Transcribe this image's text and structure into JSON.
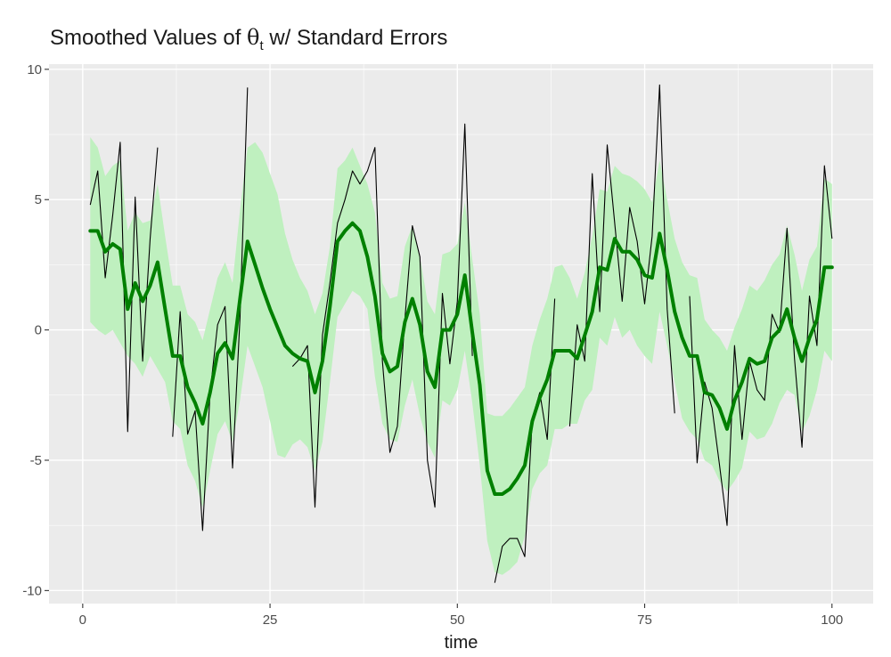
{
  "chart_data": {
    "type": "line",
    "title": {
      "prefix": "Smoothed Values of ",
      "symbol": "θ",
      "subscript": "t",
      "suffix": " w/ Standard Errors"
    },
    "xlabel": "time",
    "ylabel": "",
    "xlim": [
      -4.5,
      105.5
    ],
    "ylim": [
      -10.5,
      10.2
    ],
    "x_ticks": [
      0,
      25,
      50,
      75,
      100
    ],
    "y_ticks": [
      10,
      5,
      0,
      -5,
      -10
    ],
    "y_tick_labels": [
      "10",
      "5",
      "0",
      "-5",
      "-10"
    ],
    "grid": true,
    "legend": "none",
    "colors": {
      "panel": "#ebebeb",
      "grid_major": "#ffffff",
      "band": "#bff0bf",
      "smoothed": "#008000",
      "observed": "#000000"
    },
    "series": [
      {
        "role": "observed",
        "x": [
          1,
          2,
          3,
          4,
          5,
          6,
          7,
          8,
          9,
          10,
          12,
          13,
          14,
          15,
          16,
          17,
          18,
          19,
          20,
          21,
          22,
          28,
          29,
          30,
          31,
          32,
          33,
          34,
          35,
          36,
          37,
          38,
          39,
          40,
          41,
          42,
          43,
          44,
          45,
          46,
          47,
          48,
          49,
          50,
          51,
          52,
          55,
          56,
          57,
          58,
          59,
          60,
          61,
          62,
          63,
          65,
          66,
          67,
          68,
          69,
          70,
          71,
          72,
          73,
          74,
          75,
          76,
          77,
          78,
          79,
          81,
          82,
          83,
          84,
          85,
          86,
          87,
          88,
          89,
          90,
          91,
          92,
          93,
          94,
          95,
          96,
          97,
          98,
          99,
          100
        ],
        "y": [
          4.8,
          6.1,
          2.0,
          4.4,
          7.2,
          -3.9,
          5.1,
          -1.2,
          3.5,
          7.0,
          -4.1,
          0.7,
          -4.0,
          -3.1,
          -7.7,
          -2.4,
          0.2,
          0.9,
          -5.3,
          0.5,
          9.3,
          -1.4,
          -1.1,
          -0.6,
          -6.8,
          -0.2,
          1.8,
          4.1,
          5.0,
          6.1,
          5.6,
          6.1,
          7.0,
          -1.2,
          -4.7,
          -3.7,
          0.4,
          4.0,
          2.8,
          -5.0,
          -6.8,
          1.4,
          -1.3,
          1.1,
          7.9,
          -1.0,
          -9.7,
          -8.3,
          -8.0,
          -8.0,
          -8.7,
          -3.4,
          -2.4,
          -4.2,
          1.2,
          -3.7,
          0.2,
          -1.2,
          6.0,
          0.7,
          7.1,
          4.1,
          1.1,
          4.7,
          3.4,
          1.0,
          3.6,
          9.4,
          0.8,
          -3.2,
          1.3,
          -5.1,
          -2.0,
          -3.0,
          -5.2,
          -7.5,
          -0.6,
          -4.2,
          -1.2,
          -2.3,
          -2.7,
          0.6,
          -0.1,
          3.9,
          -1.1,
          -4.5,
          1.3,
          -0.6,
          6.3,
          3.5
        ]
      },
      {
        "role": "smoothed",
        "x": [
          1,
          2,
          3,
          4,
          5,
          6,
          7,
          8,
          9,
          10,
          11,
          12,
          13,
          14,
          15,
          16,
          17,
          18,
          19,
          20,
          21,
          22,
          23,
          24,
          25,
          26,
          27,
          28,
          29,
          30,
          31,
          32,
          33,
          34,
          35,
          36,
          37,
          38,
          39,
          40,
          41,
          42,
          43,
          44,
          45,
          46,
          47,
          48,
          49,
          50,
          51,
          52,
          53,
          54,
          55,
          56,
          57,
          58,
          59,
          60,
          61,
          62,
          63,
          64,
          65,
          66,
          67,
          68,
          69,
          70,
          71,
          72,
          73,
          74,
          75,
          76,
          77,
          78,
          79,
          80,
          81,
          82,
          83,
          84,
          85,
          86,
          87,
          88,
          89,
          90,
          91,
          92,
          93,
          94,
          95,
          96,
          97,
          98,
          99,
          100
        ],
        "y": [
          3.8,
          3.8,
          3.0,
          3.3,
          3.1,
          0.8,
          1.8,
          1.1,
          1.7,
          2.6,
          0.8,
          -1.0,
          -1.0,
          -2.2,
          -2.8,
          -3.6,
          -2.4,
          -0.9,
          -0.5,
          -1.1,
          1.2,
          3.4,
          2.5,
          1.6,
          0.8,
          0.1,
          -0.6,
          -0.9,
          -1.1,
          -1.2,
          -2.4,
          -1.2,
          0.9,
          3.4,
          3.8,
          4.1,
          3.8,
          2.8,
          1.3,
          -0.9,
          -1.6,
          -1.4,
          0.3,
          1.2,
          0.2,
          -1.6,
          -2.2,
          0.0,
          0.0,
          0.6,
          2.1,
          -0.1,
          -2.1,
          -5.4,
          -6.3,
          -6.3,
          -6.1,
          -5.7,
          -5.2,
          -3.5,
          -2.6,
          -1.9,
          -0.8,
          -0.8,
          -0.8,
          -1.1,
          -0.2,
          0.7,
          2.4,
          2.3,
          3.5,
          3.0,
          3.0,
          2.7,
          2.1,
          2.0,
          3.7,
          2.3,
          0.7,
          -0.3,
          -1.0,
          -1.0,
          -2.4,
          -2.5,
          -3.0,
          -3.8,
          -2.7,
          -2.0,
          -1.1,
          -1.3,
          -1.2,
          -0.3,
          0.0,
          0.8,
          -0.3,
          -1.2,
          -0.3,
          0.4,
          2.4,
          2.4
        ]
      },
      {
        "role": "lower",
        "x": [
          1,
          2,
          3,
          4,
          5,
          6,
          7,
          8,
          9,
          10,
          11,
          12,
          13,
          14,
          15,
          16,
          17,
          18,
          19,
          20,
          21,
          22,
          23,
          24,
          25,
          26,
          27,
          28,
          29,
          30,
          31,
          32,
          33,
          34,
          35,
          36,
          37,
          38,
          39,
          40,
          41,
          42,
          43,
          44,
          45,
          46,
          47,
          48,
          49,
          50,
          51,
          52,
          53,
          54,
          55,
          56,
          57,
          58,
          59,
          60,
          61,
          62,
          63,
          64,
          65,
          66,
          67,
          68,
          69,
          70,
          71,
          72,
          73,
          74,
          75,
          76,
          77,
          78,
          79,
          80,
          81,
          82,
          83,
          84,
          85,
          86,
          87,
          88,
          89,
          90,
          91,
          92,
          93,
          94,
          95,
          96,
          97,
          98,
          99,
          100
        ],
        "y": [
          0.3,
          0.0,
          -0.2,
          0.0,
          -0.5,
          -1.0,
          -1.3,
          -1.8,
          -1.0,
          -1.5,
          -2.0,
          -3.5,
          -3.8,
          -5.2,
          -5.8,
          -6.8,
          -5.4,
          -4.0,
          -3.5,
          -4.3,
          -2.7,
          -0.6,
          -1.4,
          -2.2,
          -3.5,
          -4.8,
          -4.9,
          -4.4,
          -4.2,
          -4.5,
          -5.4,
          -4.3,
          -2.0,
          0.5,
          1.0,
          1.5,
          1.3,
          0.8,
          -1.8,
          -3.6,
          -4.2,
          -4.3,
          -2.9,
          -1.9,
          -3.3,
          -4.3,
          -4.9,
          -2.7,
          -2.9,
          -2.3,
          -0.8,
          -2.8,
          -5.2,
          -8.1,
          -9.3,
          -9.4,
          -9.2,
          -8.9,
          -7.9,
          -6.1,
          -5.5,
          -5.2,
          -3.8,
          -3.8,
          -3.6,
          -3.6,
          -2.7,
          -2.3,
          -0.3,
          -0.6,
          0.5,
          -0.3,
          0.0,
          -0.6,
          -1.0,
          -1.3,
          0.7,
          -0.6,
          -2.0,
          -3.4,
          -3.9,
          -4.2,
          -5.0,
          -5.2,
          -5.8,
          -6.2,
          -5.8,
          -5.3,
          -3.9,
          -4.2,
          -4.1,
          -3.6,
          -2.8,
          -2.3,
          -2.5,
          -3.9,
          -3.3,
          -2.3,
          -0.8,
          -1.2
        ]
      },
      {
        "role": "upper",
        "x": [
          1,
          2,
          3,
          4,
          5,
          6,
          7,
          8,
          9,
          10,
          11,
          12,
          13,
          14,
          15,
          16,
          17,
          18,
          19,
          20,
          21,
          22,
          23,
          24,
          25,
          26,
          27,
          28,
          29,
          30,
          31,
          32,
          33,
          34,
          35,
          36,
          37,
          38,
          39,
          40,
          41,
          42,
          43,
          44,
          45,
          46,
          47,
          48,
          49,
          50,
          51,
          52,
          53,
          54,
          55,
          56,
          57,
          58,
          59,
          60,
          61,
          62,
          63,
          64,
          65,
          66,
          67,
          68,
          69,
          70,
          71,
          72,
          73,
          74,
          75,
          76,
          77,
          78,
          79,
          80,
          81,
          82,
          83,
          84,
          85,
          86,
          87,
          88,
          89,
          90,
          91,
          92,
          93,
          94,
          95,
          96,
          97,
          98,
          99,
          100
        ],
        "y": [
          7.4,
          7.0,
          5.9,
          6.3,
          6.5,
          3.8,
          4.5,
          4.1,
          4.2,
          5.6,
          3.6,
          1.7,
          1.7,
          0.6,
          0.3,
          -0.4,
          0.8,
          2.0,
          2.6,
          1.8,
          4.6,
          7.0,
          7.2,
          6.8,
          6.0,
          5.2,
          3.7,
          2.7,
          2.0,
          1.5,
          0.6,
          1.4,
          3.2,
          6.2,
          6.5,
          7.0,
          6.3,
          5.6,
          4.5,
          1.8,
          1.2,
          1.3,
          3.2,
          4.0,
          2.8,
          1.1,
          0.6,
          2.9,
          3.0,
          3.3,
          4.9,
          2.7,
          0.6,
          -3.2,
          -3.3,
          -3.3,
          -3.0,
          -2.6,
          -2.2,
          -0.6,
          0.4,
          1.2,
          2.4,
          2.5,
          2.0,
          1.2,
          2.2,
          3.6,
          5.4,
          5.3,
          6.3,
          6.0,
          5.9,
          5.7,
          5.4,
          4.9,
          6.5,
          5.0,
          3.5,
          2.6,
          2.1,
          2.0,
          0.4,
          0.0,
          -0.3,
          -0.8,
          0.1,
          0.8,
          1.7,
          1.5,
          1.9,
          2.5,
          2.9,
          4.0,
          2.9,
          1.5,
          2.7,
          3.2,
          5.8,
          5.6
        ]
      }
    ]
  }
}
